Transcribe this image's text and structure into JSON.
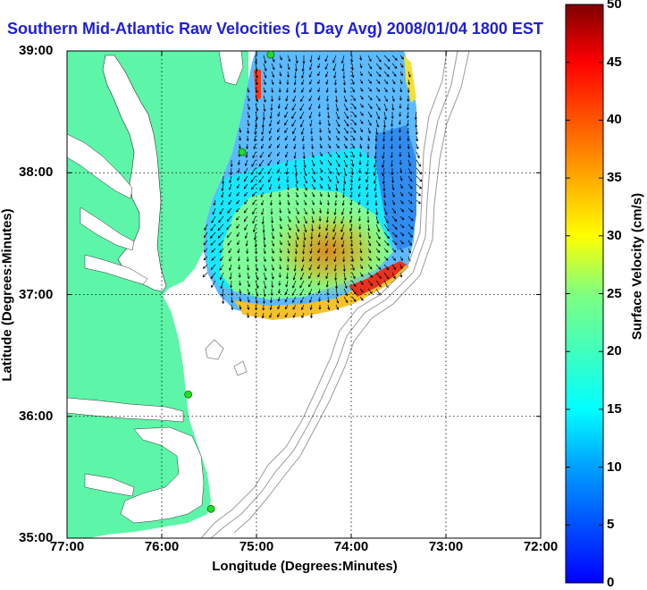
{
  "map": {
    "title": "Southern Mid-Atlantic Raw Velocities (1 Day Avg) 2008/01/04 1800 EST",
    "xlabel": "Longitude (Degrees:Minutes)",
    "ylabel": "Latitude (Degrees:Minutes)",
    "x_ticks": [
      "77:00",
      "76:00",
      "75:00",
      "74:00",
      "73:00",
      "72:00"
    ],
    "y_ticks": [
      "39:00",
      "38:00",
      "37:00",
      "36:00",
      "35:00"
    ],
    "colors": {
      "land": "#5df5a8",
      "water": "#ffffff",
      "title": "#1f1fd6",
      "station": "#22dd22",
      "bathymetry": "#9a9a9a"
    }
  },
  "colorbar": {
    "label": "Surface Velocity (cm/s)",
    "ticks": [
      "0",
      "5",
      "10",
      "15",
      "20",
      "25",
      "30",
      "35",
      "40",
      "45",
      "50"
    ],
    "range": [
      0,
      50
    ],
    "colormap": "jet"
  },
  "stations": [
    {
      "lon": -74.85,
      "lat": 38.97
    },
    {
      "lon": -75.15,
      "lat": 38.17
    },
    {
      "lon": -75.72,
      "lat": 36.18
    },
    {
      "lon": -75.48,
      "lat": 35.24
    }
  ]
}
